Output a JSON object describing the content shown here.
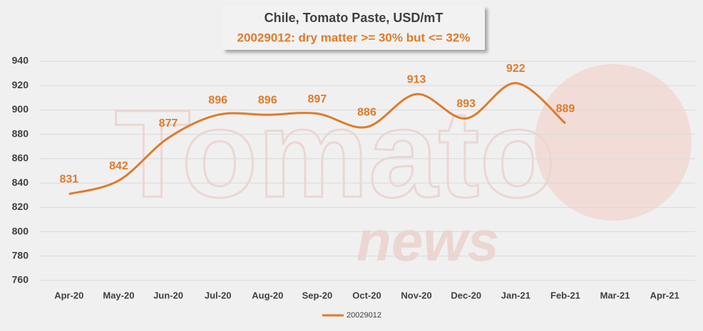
{
  "chart_data": {
    "type": "line",
    "title": "Chile, Tomato Paste, USD/mT",
    "subtitle": "20029012: dry matter >= 30% but <= 32%",
    "watermark": "Tomato",
    "watermark_sub": "news",
    "categories": [
      "Apr-20",
      "May-20",
      "Jun-20",
      "Jul-20",
      "Aug-20",
      "Sep-20",
      "Oct-20",
      "Nov-20",
      "Dec-20",
      "Jan-21",
      "Feb-21",
      "Mar-21",
      "Apr-21"
    ],
    "series": [
      {
        "name": "20029012",
        "color": "#e07b2a",
        "values": [
          831,
          842,
          877,
          896,
          896,
          897,
          886,
          913,
          893,
          922,
          889,
          null,
          null
        ]
      }
    ],
    "ylim": [
      760,
      940
    ],
    "yticks": [
      760,
      780,
      800,
      820,
      840,
      860,
      880,
      900,
      920,
      940
    ],
    "grid": true,
    "legend": "bottom",
    "smooth": true
  }
}
